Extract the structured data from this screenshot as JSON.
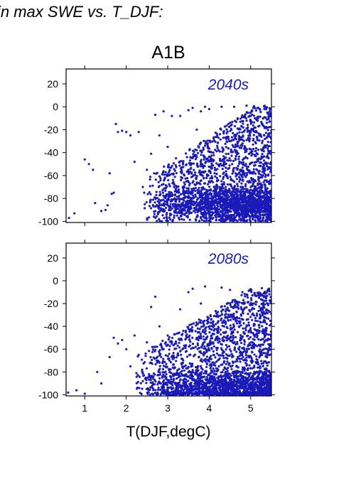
{
  "page": {
    "heading": "in max SWE vs. T_DJF:",
    "scenario_title": "A1B",
    "xlabel": "T(DJF,degC)"
  },
  "colors": {
    "points": "#1a1ab8",
    "axis": "#000000"
  },
  "chart_data": [
    {
      "type": "scatter",
      "panel_label": "2040s",
      "xlim": [
        0.55,
        5.5
      ],
      "ylim": [
        -101,
        33
      ],
      "xticks": [
        1,
        2,
        3,
        4,
        5
      ],
      "yticks": [
        20,
        0,
        -20,
        -40,
        -60,
        -80,
        -100
      ],
      "ytick_labels": [
        "20",
        "0",
        "-20",
        "-40",
        "-60",
        "-80",
        "-100"
      ],
      "x_tick_labels_shown": false,
      "grid": false,
      "points": [
        [
          0.62,
          -97
        ],
        [
          0.75,
          -93
        ],
        [
          1.0,
          -46
        ],
        [
          1.1,
          -50
        ],
        [
          1.2,
          -55
        ],
        [
          1.25,
          -84
        ],
        [
          1.4,
          -91
        ],
        [
          1.5,
          -90
        ],
        [
          1.55,
          -86
        ],
        [
          1.6,
          -58
        ],
        [
          1.65,
          -76
        ],
        [
          1.7,
          -75
        ],
        [
          1.75,
          -15
        ],
        [
          1.8,
          -22
        ],
        [
          1.9,
          -21
        ],
        [
          2.0,
          -22
        ],
        [
          2.1,
          -25
        ],
        [
          2.2,
          -48
        ],
        [
          2.3,
          -22
        ],
        [
          2.4,
          -70
        ],
        [
          2.5,
          -55
        ],
        [
          2.6,
          -41
        ],
        [
          2.7,
          -7
        ],
        [
          2.8,
          -25
        ],
        [
          2.9,
          -4
        ],
        [
          3.0,
          -35
        ],
        [
          3.1,
          -8
        ],
        [
          3.2,
          -45
        ],
        [
          3.3,
          -8
        ],
        [
          3.4,
          -60
        ],
        [
          3.5,
          -3
        ],
        [
          3.6,
          -1
        ],
        [
          3.7,
          -20
        ],
        [
          3.8,
          -4
        ],
        [
          3.9,
          0
        ],
        [
          4.0,
          -2
        ],
        [
          4.1,
          -40
        ],
        [
          4.2,
          -70
        ],
        [
          4.3,
          0
        ],
        [
          4.4,
          -85
        ],
        [
          4.5,
          -30
        ],
        [
          4.6,
          0
        ],
        [
          4.7,
          -90
        ],
        [
          4.8,
          -50
        ],
        [
          4.9,
          1
        ],
        [
          5.0,
          -78
        ],
        [
          5.1,
          -10
        ],
        [
          5.2,
          -88
        ],
        [
          5.3,
          -60
        ],
        [
          5.4,
          -5
        ],
        [
          5.45,
          -92
        ]
      ],
      "dense_region": {
        "x_from": 2.4,
        "x_to": 5.5,
        "y_from": -100,
        "y_to": 1,
        "cluster_center": [
          4.9,
          -85
        ]
      }
    },
    {
      "type": "scatter",
      "panel_label": "2080s",
      "xlim": [
        0.55,
        5.5
      ],
      "ylim": [
        -101,
        33
      ],
      "xticks": [
        1,
        2,
        3,
        4,
        5
      ],
      "xtick_labels": [
        "1",
        "2",
        "3",
        "4",
        "5"
      ],
      "yticks": [
        20,
        0,
        -20,
        -40,
        -60,
        -80,
        -100
      ],
      "ytick_labels": [
        "20",
        "0",
        "-20",
        "-40",
        "-60",
        "-80",
        "-100"
      ],
      "grid": false,
      "points": [
        [
          0.6,
          -98
        ],
        [
          0.8,
          -96
        ],
        [
          1.0,
          -99
        ],
        [
          1.3,
          -80
        ],
        [
          1.4,
          -90
        ],
        [
          1.6,
          -67
        ],
        [
          1.7,
          -50
        ],
        [
          1.8,
          -55
        ],
        [
          1.9,
          -52
        ],
        [
          2.0,
          -60
        ],
        [
          2.1,
          -75
        ],
        [
          2.2,
          -48
        ],
        [
          2.3,
          -65
        ],
        [
          2.4,
          -88
        ],
        [
          2.5,
          -54
        ],
        [
          2.6,
          -23
        ],
        [
          2.7,
          -14
        ],
        [
          2.8,
          -40
        ],
        [
          2.9,
          -60
        ],
        [
          3.0,
          -48
        ],
        [
          3.1,
          -95
        ],
        [
          3.2,
          -55
        ],
        [
          3.3,
          -25
        ],
        [
          3.4,
          -75
        ],
        [
          3.5,
          -10
        ],
        [
          3.6,
          -7
        ],
        [
          3.7,
          -50
        ],
        [
          3.8,
          -20
        ],
        [
          3.9,
          -5
        ],
        [
          4.0,
          -90
        ],
        [
          4.1,
          -62
        ],
        [
          4.2,
          -30
        ],
        [
          4.3,
          -6
        ],
        [
          4.4,
          -80
        ],
        [
          4.5,
          -8
        ],
        [
          4.6,
          -40
        ],
        [
          4.7,
          -95
        ],
        [
          4.8,
          -10
        ],
        [
          4.9,
          -70
        ],
        [
          5.0,
          -8
        ],
        [
          5.1,
          -98
        ],
        [
          5.2,
          -15
        ],
        [
          5.3,
          -88
        ],
        [
          5.4,
          -9
        ],
        [
          5.45,
          -95
        ]
      ],
      "dense_region": {
        "x_from": 2.2,
        "x_to": 5.5,
        "y_from": -100,
        "y_to": -6,
        "cluster_center": [
          4.8,
          -94
        ]
      }
    }
  ]
}
